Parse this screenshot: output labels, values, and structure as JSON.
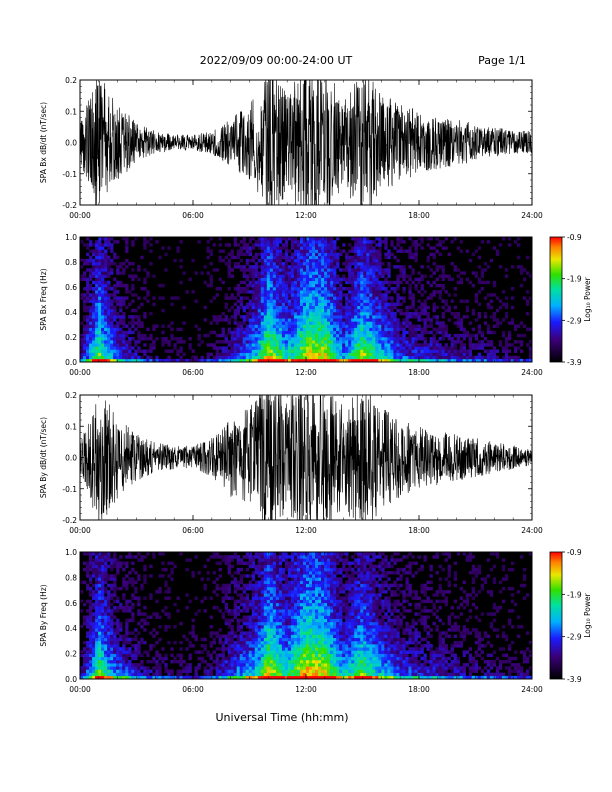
{
  "header": {
    "title": "2022/09/09  00:00-24:00 UT",
    "page": "Page 1/1"
  },
  "footer": {
    "xlabel": "Universal Time (hh:mm)"
  },
  "colors": {
    "waveform": "#000000",
    "spectrogram_background": "#000000"
  },
  "chart_data": [
    {
      "type": "line",
      "ylabel": "SPA Bx dB/dt (nT/sec)",
      "ylim": [
        -0.2,
        0.2
      ],
      "yticks": [
        "0.2",
        "0.1",
        "0.0",
        "-0.1",
        "-0.2"
      ],
      "xlim_hours": [
        0,
        24
      ],
      "xticks": [
        "00:00",
        "06:00",
        "12:00",
        "18:00",
        "24:00"
      ],
      "envelope": {
        "hour": [
          0,
          0.5,
          1.0,
          1.5,
          2.0,
          3.0,
          4.0,
          5.0,
          6.0,
          7.0,
          8.0,
          9.0,
          9.5,
          10.0,
          11.0,
          12.0,
          13.0,
          14.0,
          15.0,
          16.0,
          17.0,
          18.0,
          19.0,
          20.0,
          21.0,
          22.0,
          23.0,
          24.0
        ],
        "amplitude": [
          0.05,
          0.12,
          0.2,
          0.13,
          0.1,
          0.05,
          0.03,
          0.02,
          0.02,
          0.03,
          0.06,
          0.1,
          0.14,
          0.2,
          0.13,
          0.2,
          0.2,
          0.11,
          0.2,
          0.13,
          0.1,
          0.08,
          0.07,
          0.06,
          0.05,
          0.04,
          0.03,
          0.03
        ]
      }
    },
    {
      "type": "heatmap",
      "ylabel": "SPA Bx Freq (Hz)",
      "ylim": [
        0.0,
        1.0
      ],
      "yticks": [
        "1.0",
        "0.8",
        "0.6",
        "0.4",
        "0.2",
        "0.0"
      ],
      "xlim_hours": [
        0,
        24
      ],
      "xticks": [
        "00:00",
        "06:00",
        "12:00",
        "18:00",
        "24:00"
      ],
      "colorbar": {
        "label": "Log₁₀ Power",
        "range": [
          -3.9,
          -0.9
        ],
        "ticks": [
          "-0.9",
          "-1.9",
          "-2.9",
          "-3.9"
        ]
      },
      "activity": {
        "hour": [
          0,
          0.5,
          1.0,
          1.5,
          2.0,
          3.0,
          4.0,
          5.0,
          6.0,
          7.0,
          8.0,
          9.0,
          9.5,
          10.0,
          11.0,
          12.0,
          13.0,
          14.0,
          15.0,
          16.0,
          17.0,
          18.0,
          19.0,
          20.0,
          21.0,
          22.0,
          23.0,
          24.0
        ],
        "level": [
          0.2,
          0.5,
          0.8,
          0.6,
          0.4,
          0.25,
          0.15,
          0.1,
          0.1,
          0.15,
          0.3,
          0.5,
          0.65,
          0.9,
          0.6,
          0.9,
          0.9,
          0.5,
          0.85,
          0.6,
          0.4,
          0.35,
          0.3,
          0.25,
          0.2,
          0.2,
          0.15,
          0.15
        ]
      }
    },
    {
      "type": "line",
      "ylabel": "SPA By dB/dt (nT/sec)",
      "ylim": [
        -0.2,
        0.2
      ],
      "yticks": [
        "0.2",
        "0.1",
        "0.0",
        "-0.1",
        "-0.2"
      ],
      "xlim_hours": [
        0,
        24
      ],
      "xticks": [
        "00:00",
        "06:00",
        "12:00",
        "18:00",
        "24:00"
      ],
      "envelope": {
        "hour": [
          0,
          0.5,
          1.0,
          1.5,
          2.0,
          3.0,
          4.0,
          5.0,
          6.0,
          7.0,
          8.0,
          9.0,
          9.5,
          10.0,
          11.0,
          12.0,
          13.0,
          14.0,
          15.0,
          16.0,
          17.0,
          18.0,
          19.0,
          20.0,
          21.0,
          22.0,
          23.0,
          24.0
        ],
        "amplitude": [
          0.04,
          0.1,
          0.2,
          0.14,
          0.11,
          0.06,
          0.04,
          0.03,
          0.03,
          0.05,
          0.1,
          0.13,
          0.17,
          0.2,
          0.15,
          0.2,
          0.2,
          0.13,
          0.2,
          0.14,
          0.1,
          0.08,
          0.07,
          0.06,
          0.05,
          0.04,
          0.03,
          0.02
        ]
      }
    },
    {
      "type": "heatmap",
      "ylabel": "SPA By Freq (Hz)",
      "ylim": [
        0.0,
        1.0
      ],
      "yticks": [
        "1.0",
        "0.8",
        "0.6",
        "0.4",
        "0.2",
        "0.0"
      ],
      "xlim_hours": [
        0,
        24
      ],
      "xticks": [
        "00:00",
        "06:00",
        "12:00",
        "18:00",
        "24:00"
      ],
      "colorbar": {
        "label": "Log₁₀ Power",
        "range": [
          -3.9,
          -0.9
        ],
        "ticks": [
          "-0.9",
          "-1.9",
          "-2.9",
          "-3.9"
        ]
      },
      "activity": {
        "hour": [
          0,
          0.5,
          1.0,
          1.5,
          2.0,
          3.0,
          4.0,
          5.0,
          6.0,
          7.0,
          8.0,
          9.0,
          9.5,
          10.0,
          11.0,
          12.0,
          13.0,
          14.0,
          15.0,
          16.0,
          17.0,
          18.0,
          19.0,
          20.0,
          21.0,
          22.0,
          23.0,
          24.0
        ],
        "level": [
          0.2,
          0.45,
          0.8,
          0.6,
          0.45,
          0.3,
          0.2,
          0.15,
          0.15,
          0.2,
          0.4,
          0.55,
          0.65,
          0.9,
          0.65,
          0.95,
          0.9,
          0.55,
          0.8,
          0.55,
          0.4,
          0.35,
          0.3,
          0.25,
          0.2,
          0.2,
          0.15,
          0.15
        ]
      }
    }
  ]
}
